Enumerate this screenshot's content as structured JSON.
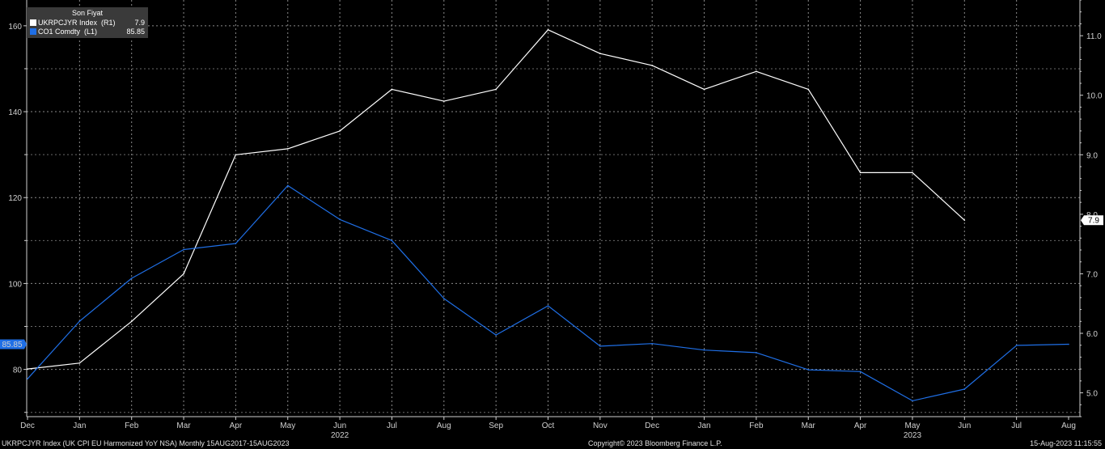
{
  "chart_data": {
    "type": "line",
    "categories": [
      "Dec",
      "Jan",
      "Feb",
      "Mar",
      "Apr",
      "May",
      "Jun",
      "Jul",
      "Aug",
      "Sep",
      "Oct",
      "Nov",
      "Dec",
      "Jan",
      "Feb",
      "Mar",
      "Apr",
      "May",
      "Jun",
      "Jul",
      "Aug"
    ],
    "year_labels": [
      {
        "index": 6,
        "label": "2022"
      },
      {
        "index": 17,
        "label": "2023"
      }
    ],
    "left_axis": {
      "ticks": [
        80,
        100,
        120,
        140,
        160
      ],
      "ylim": [
        69,
        166
      ]
    },
    "right_axis": {
      "ticks": [
        "5.0",
        "6.0",
        "7.0",
        "8.0",
        "9.0",
        "10.0",
        "11.0"
      ],
      "ylim": [
        4.6,
        11.6
      ]
    },
    "grid": true,
    "legend": {
      "title": "Son Fiyat",
      "position": "top-left",
      "entries": [
        {
          "name": "UKRPCJYR Index  (R1)",
          "value": "7.9",
          "color": "#ffffff"
        },
        {
          "name": "CO1 Comdty  (L1)",
          "value": "85.85",
          "color": "#1f6fe6"
        }
      ]
    },
    "series": [
      {
        "name": "UKRPCJYR Index  (R1)",
        "axis": "right",
        "color": "#ffffff",
        "values": [
          5.4,
          5.5,
          6.2,
          7.0,
          9.0,
          9.1,
          9.4,
          10.1,
          9.9,
          10.1,
          11.1,
          10.7,
          10.5,
          10.1,
          10.4,
          10.1,
          8.7,
          8.7,
          7.9,
          null,
          null
        ],
        "last_label": "7.9"
      },
      {
        "name": "CO1 Comdty  (L1)",
        "axis": "left",
        "color": "#1f6fe6",
        "values": [
          77.8,
          91.2,
          101.2,
          107.9,
          109.3,
          122.8,
          114.9,
          110.0,
          96.5,
          88.0,
          94.8,
          85.4,
          86.0,
          84.5,
          83.9,
          79.9,
          79.5,
          72.7,
          75.4,
          85.6,
          85.85
        ],
        "last_label": "85.85"
      }
    ]
  },
  "footer": {
    "left": "UKRPCJYR Index (UK CPI EU Harmonized YoY NSA)  Monthly 15AUG2017-15AUG2023",
    "center": "Copyright© 2023 Bloomberg Finance L.P.",
    "right": "15-Aug-2023 11:15:55"
  }
}
